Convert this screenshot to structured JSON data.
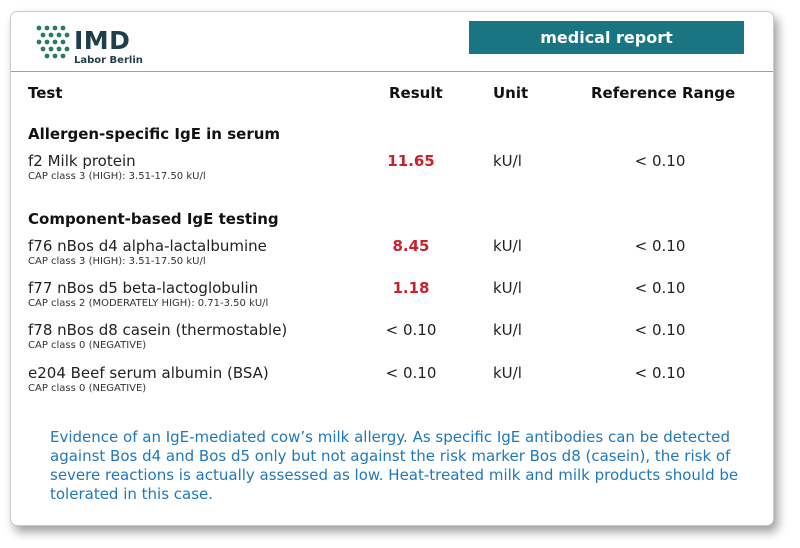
{
  "logo": {
    "name": "IMD",
    "subtitle": "Labor Berlin"
  },
  "badge": "medical report",
  "columns": {
    "test": "Test",
    "result": "Result",
    "unit": "Unit",
    "reference": "Reference Range"
  },
  "sections": [
    {
      "title": "Allergen-specific IgE in serum",
      "rows": [
        {
          "name": "f2 Milk protein",
          "cap": "CAP class 3 (HIGH): 3.51-17.50 kU/l",
          "result": "11.65",
          "flag": "high",
          "unit": "kU/l",
          "reference": "< 0.10"
        }
      ]
    },
    {
      "title": "Component-based IgE testing",
      "rows": [
        {
          "name": "f76 nBos d4 alpha-lactalbumine",
          "cap": "CAP class 3 (HIGH): 3.51-17.50 kU/l",
          "result": "8.45",
          "flag": "high",
          "unit": "kU/l",
          "reference": "< 0.10"
        },
        {
          "name": "f77 nBos d5 beta-lactoglobulin",
          "cap": "CAP class 2 (MODERATELY HIGH): 0.71-3.50 kU/l",
          "result": "1.18",
          "flag": "high",
          "unit": "kU/l",
          "reference": "< 0.10"
        },
        {
          "name": "f78 nBos d8 casein (thermostable)",
          "cap": "CAP class 0 (NEGATIVE)",
          "result": "< 0.10",
          "flag": "normal",
          "unit": "kU/l",
          "reference": "< 0.10"
        },
        {
          "name": "e204 Beef serum albumin (BSA)",
          "cap": "CAP class 0 (NEGATIVE)",
          "result": "< 0.10",
          "flag": "normal",
          "unit": "kU/l",
          "reference": "< 0.10"
        }
      ]
    }
  ],
  "note": "Evidence of an IgE-mediated cow’s milk allergy. As specific IgE antibodies can be detected against Bos d4 and Bos d5 only but not against the risk marker Bos d8 (casein), the risk of severe reactions is actually assessed as low. Heat-treated milk and milk products should be tolerated in this case.",
  "colors": {
    "badge": "#1a7582",
    "high_result": "#c8222c",
    "note_text": "#1f78bd",
    "logo": "#1f3d4a",
    "logo_dots": "#2a7a63"
  }
}
